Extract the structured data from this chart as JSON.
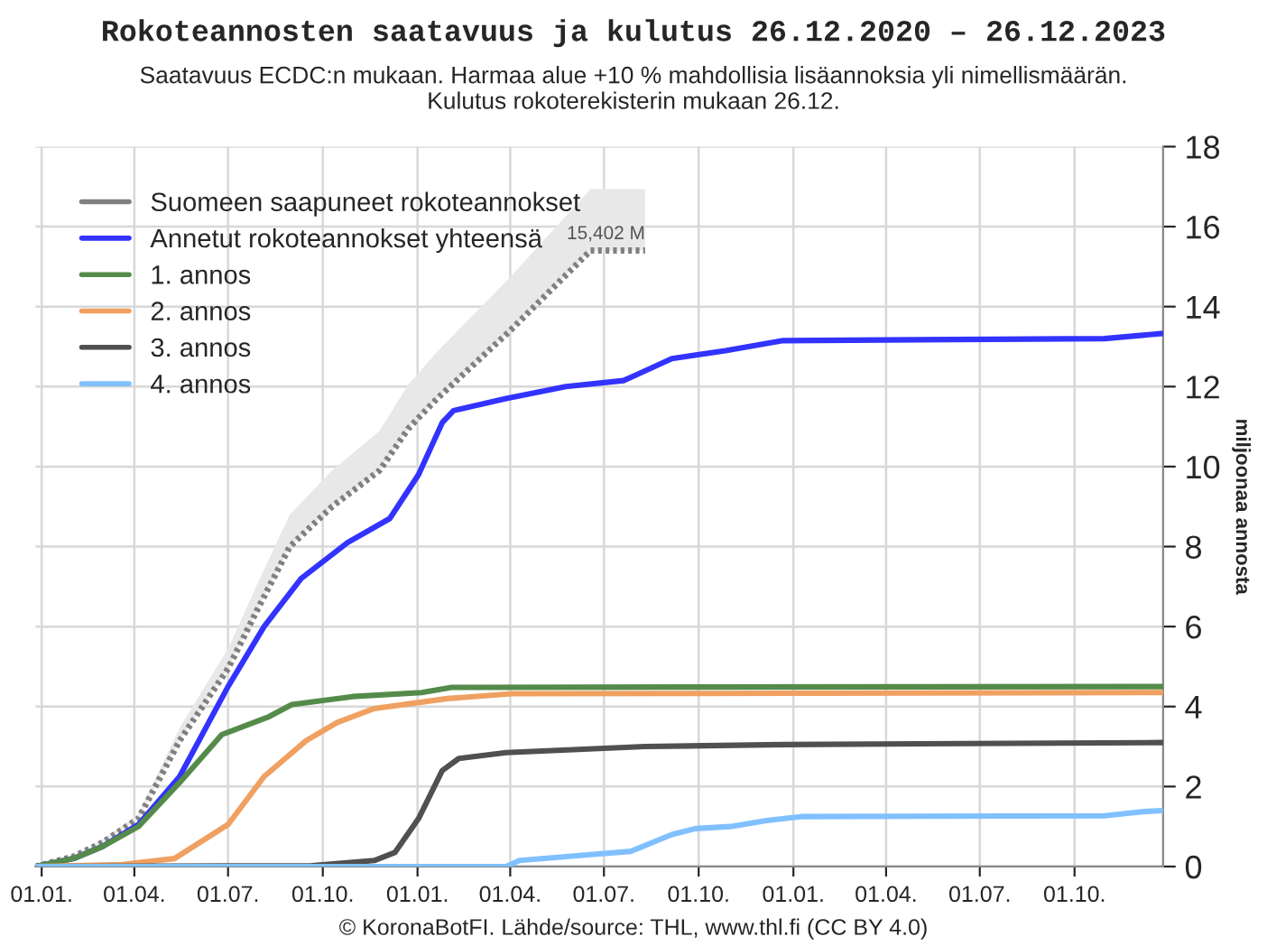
{
  "chart_data": {
    "type": "line",
    "title": "Rokoteannosten saatavuus ja kulutus 26.12.2020 – 26.12.2023",
    "subtitle": "Saatavuus ECDC:n mukaan. Harmaa alue +10 % mahdollisia lisäannoksia yli nimellismäärän.\nKulutus rokoterekisterin mukaan 26.12.",
    "ylabel": "miljoonaa annosta",
    "annotations": [
      {
        "text": "15,402 M",
        "x": "2022-08-10",
        "y": 15.402
      },
      "© KoronaBotFI. Lähde/source: THL, www.thl.fi (CC BY 4.0)"
    ],
    "xlim": [
      "2020-12-26",
      "2023-12-26"
    ],
    "xticks": [
      {
        "value": "2021-01-01",
        "label": "01.01."
      },
      {
        "value": "2021-04-01",
        "label": "01.04."
      },
      {
        "value": "2021-07-01",
        "label": "01.07."
      },
      {
        "value": "2021-10-01",
        "label": "01.10."
      },
      {
        "value": "2022-01-01",
        "label": "01.01."
      },
      {
        "value": "2022-04-01",
        "label": "01.04."
      },
      {
        "value": "2022-07-01",
        "label": "01.07."
      },
      {
        "value": "2022-10-01",
        "label": "01.10."
      },
      {
        "value": "2023-01-01",
        "label": "01.01."
      },
      {
        "value": "2023-04-01",
        "label": "01.04."
      },
      {
        "value": "2023-07-01",
        "label": "01.07."
      },
      {
        "value": "2023-10-01",
        "label": "01.10."
      }
    ],
    "ylim": [
      0,
      18
    ],
    "yticks": [
      0,
      2,
      4,
      6,
      8,
      10,
      12,
      14,
      16,
      18
    ],
    "grid": true,
    "legend": "top left",
    "series": [
      {
        "name": "Suomeen saapuneet rokoteannokset",
        "color": "#808080",
        "line_style": "dotted",
        "x": [
          "2020-12-26",
          "2021-02-01",
          "2021-03-01",
          "2021-04-05",
          "2021-05-15",
          "2021-07-01",
          "2021-07-30",
          "2021-08-30",
          "2021-10-10",
          "2021-11-25",
          "2021-12-23",
          "2022-01-20",
          "2022-04-01",
          "2022-06-18",
          "2022-08-10"
        ],
        "values": [
          0,
          0.25,
          0.6,
          1.2,
          3.15,
          4.95,
          6.45,
          8.0,
          9.0,
          9.9,
          10.95,
          11.7,
          13.4,
          15.402,
          15.402
        ],
        "lower": [
          0,
          0.25,
          0.6,
          1.2,
          3.15,
          4.95,
          6.45,
          8.0,
          9.0,
          9.9,
          10.95,
          11.7,
          13.4,
          15.402,
          15.402
        ],
        "upper": [
          0,
          0.28,
          0.66,
          1.32,
          3.47,
          5.45,
          7.1,
          8.8,
          9.9,
          10.89,
          12.05,
          12.87,
          14.74,
          16.94,
          16.94
        ]
      },
      {
        "name": "Annetut rokoteannokset yhteensä",
        "color": "#3333ff",
        "line_style": "solid",
        "x": [
          "2020-12-26",
          "2021-02-01",
          "2021-03-01",
          "2021-04-05",
          "2021-05-15",
          "2021-07-01",
          "2021-08-05",
          "2021-09-10",
          "2021-10-25",
          "2021-12-05",
          "2022-01-02",
          "2022-01-25",
          "2022-02-05",
          "2022-03-28",
          "2022-05-25",
          "2022-07-20",
          "2022-08-02",
          "2022-09-05",
          "2022-10-27",
          "2022-12-22",
          "2023-10-30",
          "2023-12-26"
        ],
        "values": [
          0,
          0.2,
          0.5,
          1.05,
          2.25,
          4.5,
          6.0,
          7.2,
          8.1,
          8.7,
          9.8,
          11.1,
          11.4,
          11.7,
          12.0,
          12.15,
          12.3,
          12.7,
          12.9,
          13.15,
          13.2,
          13.33
        ]
      },
      {
        "name": "1. annos",
        "color": "#548b4a",
        "line_style": "solid",
        "x": [
          "2020-12-26",
          "2021-02-01",
          "2021-03-01",
          "2021-04-05",
          "2021-05-15",
          "2021-06-25",
          "2021-08-10",
          "2021-09-01",
          "2021-10-30",
          "2022-01-05",
          "2022-02-03",
          "2023-12-26"
        ],
        "values": [
          0,
          0.2,
          0.5,
          1.0,
          2.1,
          3.3,
          3.75,
          4.05,
          4.25,
          4.35,
          4.48,
          4.5
        ]
      },
      {
        "name": "2. annos",
        "color": "#f0a060",
        "line_style": "solid",
        "x": [
          "2020-12-26",
          "2021-03-20",
          "2021-05-10",
          "2021-07-01",
          "2021-08-05",
          "2021-09-15",
          "2021-10-15",
          "2021-11-20",
          "2022-01-30",
          "2022-04-03",
          "2023-12-26"
        ],
        "values": [
          0,
          0.05,
          0.2,
          1.05,
          2.25,
          3.15,
          3.6,
          3.95,
          4.2,
          4.32,
          4.35
        ]
      },
      {
        "name": "3. annos",
        "color": "#505050",
        "line_style": "solid",
        "x": [
          "2020-12-26",
          "2021-09-20",
          "2021-11-20",
          "2021-12-10",
          "2022-01-02",
          "2022-01-25",
          "2022-02-10",
          "2022-03-28",
          "2022-08-10",
          "2022-12-22",
          "2023-12-26"
        ],
        "values": [
          0,
          0.02,
          0.15,
          0.35,
          1.2,
          2.4,
          2.7,
          2.85,
          3.0,
          3.05,
          3.1
        ]
      },
      {
        "name": "4. annos",
        "color": "#80c0ff",
        "line_style": "solid",
        "x": [
          "2020-12-26",
          "2022-03-28",
          "2022-04-10",
          "2022-06-18",
          "2022-07-27",
          "2022-09-05",
          "2022-09-28",
          "2022-11-01",
          "2022-12-06",
          "2023-01-10",
          "2023-10-30",
          "2023-12-10",
          "2023-12-26"
        ],
        "values": [
          0,
          0,
          0.15,
          0.3,
          0.38,
          0.8,
          0.95,
          1.0,
          1.15,
          1.25,
          1.27,
          1.38,
          1.4
        ]
      }
    ]
  }
}
